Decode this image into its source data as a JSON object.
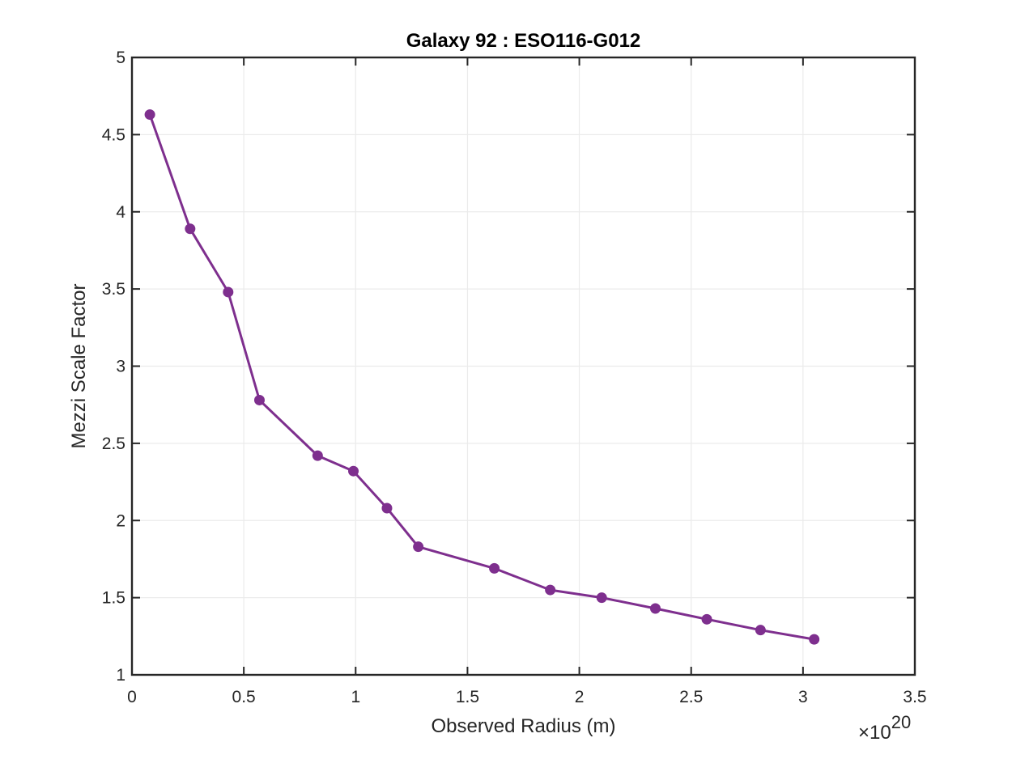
{
  "chart_data": {
    "type": "line",
    "title": "Galaxy 92 : ESO116-G012",
    "xlabel": "Observed Radius (m)",
    "ylabel": "Mezzi Scale Factor",
    "x_multiplier_label": "×10",
    "x_multiplier_exponent": "20",
    "xlim": [
      0,
      3.5
    ],
    "ylim": [
      1,
      5
    ],
    "xticks": [
      0,
      0.5,
      1,
      1.5,
      2,
      2.5,
      3,
      3.5
    ],
    "xtick_labels": [
      "0",
      "0.5",
      "1",
      "1.5",
      "2",
      "2.5",
      "3",
      "3.5"
    ],
    "yticks": [
      1,
      1.5,
      2,
      2.5,
      3,
      3.5,
      4,
      4.5,
      5
    ],
    "ytick_labels": [
      "1",
      "1.5",
      "2",
      "2.5",
      "3",
      "3.5",
      "4",
      "4.5",
      "5"
    ],
    "grid": true,
    "series": [
      {
        "color": "#7E2F8E",
        "marker": "filled-circle",
        "x": [
          0.08,
          0.26,
          0.43,
          0.57,
          0.83,
          0.99,
          1.14,
          1.28,
          1.62,
          1.87,
          2.1,
          2.34,
          2.57,
          2.81,
          3.05
        ],
        "y": [
          4.63,
          3.89,
          3.48,
          2.78,
          2.42,
          2.32,
          2.08,
          1.83,
          1.69,
          1.55,
          1.5,
          1.43,
          1.36,
          1.29,
          1.23
        ]
      }
    ]
  }
}
